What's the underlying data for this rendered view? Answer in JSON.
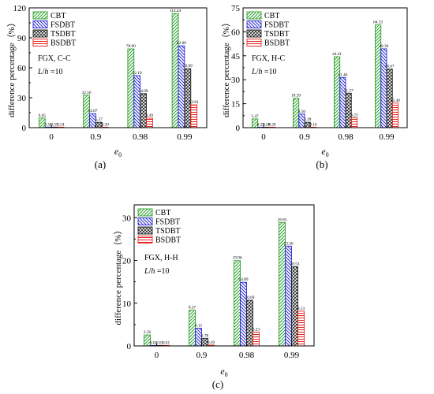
{
  "series_styles": [
    {
      "name": "CBT",
      "color": "#2ca02c",
      "pattern": "diag-right"
    },
    {
      "name": "FSDBT",
      "color": "#2b2bd6",
      "pattern": "diag-left"
    },
    {
      "name": "TSDBT",
      "color": "#222222",
      "pattern": "crosshatch"
    },
    {
      "name": "BSDBT",
      "color": "#e8221c",
      "pattern": "horizontal"
    }
  ],
  "chart_data": [
    {
      "type": "bar",
      "panel_label": "(a)",
      "annotation": [
        "FGX, C-C",
        "L/h =10"
      ],
      "categories": [
        "0",
        "0.9",
        "0.98",
        "0.99"
      ],
      "xlabel": "e0",
      "ylabel": "difference percentage（%）",
      "ylim": [
        0,
        120
      ],
      "yticks": [
        0,
        30,
        60,
        90,
        120
      ],
      "legend": "top-left",
      "series": [
        {
          "name": "CBT",
          "values": [
            9.65,
            32.56,
            78.9,
            114.44
          ],
          "labels": [
            "9.65",
            "32.56",
            "78.90",
            "114.44"
          ]
        },
        {
          "name": "FSDBT",
          "values": [
            0.56,
            14.07,
            52.1,
            82.0
          ],
          "labels": [
            "0.56",
            "14.07",
            "52.10",
            "82.00"
          ]
        },
        {
          "name": "TSDBT",
          "values": [
            0.55,
            5.37,
            34.09,
            59.09
          ],
          "labels": [
            "0.55",
            "5.37",
            "34.09",
            "59.09"
          ]
        },
        {
          "name": "BSDBT",
          "values": [
            0.54,
            0.2,
            9.49,
            22.81
          ],
          "labels": [
            "0.54",
            "0.20",
            "9.49",
            "22.81"
          ]
        }
      ]
    },
    {
      "type": "bar",
      "panel_label": "(b)",
      "annotation": [
        "FGX, H-C",
        "L/h =10"
      ],
      "categories": [
        "0",
        "0.9",
        "0.98",
        "0.99"
      ],
      "xlabel": "e0",
      "ylabel": "difference percentage（%）",
      "ylim": [
        0,
        75
      ],
      "yticks": [
        0,
        15,
        30,
        45,
        60,
        75
      ],
      "legend": "top-left",
      "series": [
        {
          "name": "CBT",
          "values": [
            5.47,
            18.39,
            44.41,
            64.33
          ],
          "labels": [
            "5.47",
            "18.39",
            "44.41",
            "64.33"
          ]
        },
        {
          "name": "FSDBT",
          "values": [
            0.29,
            8.5,
            31.4,
            49.36
          ],
          "labels": [
            "0.29",
            "8.50",
            "31.40",
            "49.36"
          ]
        },
        {
          "name": "TSDBT",
          "values": [
            0.28,
            3.39,
            21.57,
            36.67
          ],
          "labels": [
            "0.28",
            "3.39",
            "21.57",
            "36.67"
          ]
        },
        {
          "name": "BSDBT",
          "values": [
            0.28,
            0.16,
            6.23,
            15.4
          ],
          "labels": [
            "0.28",
            "0.16",
            "6.23",
            "15.40"
          ]
        }
      ]
    },
    {
      "type": "bar",
      "panel_label": "(c)",
      "annotation": [
        "FGX, H-H",
        "L/h =10"
      ],
      "categories": [
        "0",
        "0.9",
        "0.98",
        "0.99"
      ],
      "xlabel": "e0",
      "ylabel": "difference percentage（%）",
      "ylim": [
        0,
        33
      ],
      "yticks": [
        0,
        10,
        20,
        30
      ],
      "legend": "top-left",
      "series": [
        {
          "name": "CBT",
          "values": [
            2.56,
            8.37,
            19.96,
            28.85
          ],
          "labels": [
            "2.56",
            "8.37",
            "19.96",
            "28.85"
          ]
        },
        {
          "name": "FSDBT",
          "values": [
            0.01,
            4.15,
            14.89,
            23.36
          ],
          "labels": [
            "0.01",
            "4.15",
            "14.89",
            "23.36"
          ]
        },
        {
          "name": "TSDBT",
          "values": [
            0.01,
            1.78,
            10.69,
            18.53
          ],
          "labels": [
            "0.01",
            "1.78",
            "10.69",
            "18.53"
          ]
        },
        {
          "name": "BSDBT",
          "values": [
            0.01,
            0.2,
            3.23,
            8.13
          ],
          "labels": [
            "0.01",
            "0.20",
            "3.23",
            "8.13"
          ]
        }
      ]
    }
  ]
}
